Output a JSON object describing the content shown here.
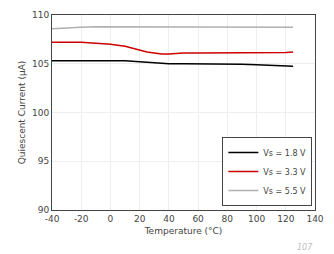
{
  "chart_data": {
    "type": "line",
    "xlabel": "Temperature (°C)",
    "ylabel": "Quiescent Current (μA)",
    "xlim": [
      -40,
      140
    ],
    "ylim": [
      90,
      110
    ],
    "xticks": [
      -40,
      -20,
      0,
      20,
      40,
      60,
      80,
      100,
      120,
      140
    ],
    "yticks": [
      90,
      95,
      100,
      105,
      110
    ],
    "grid": true,
    "legend": "lower right",
    "annotations": [
      "107"
    ],
    "series": [
      {
        "name": "Vs = 1.8 V",
        "color": "#000000",
        "x": [
          -40,
          -30,
          -20,
          -10,
          0,
          10,
          20,
          30,
          40,
          50,
          60,
          70,
          80,
          90,
          100,
          110,
          120,
          125
        ],
        "values": [
          105.3,
          105.3,
          105.3,
          105.3,
          105.3,
          105.3,
          105.2,
          105.1,
          105.0,
          105.0,
          105.0,
          105.0,
          105.0,
          104.95,
          104.9,
          104.85,
          104.8,
          104.75
        ]
      },
      {
        "name": "Vs = 3.3 V",
        "color": "#cc0000",
        "x": [
          -40,
          -30,
          -20,
          -10,
          0,
          10,
          15,
          20,
          25,
          30,
          35,
          40,
          50,
          60,
          70,
          80,
          90,
          100,
          110,
          120,
          125
        ],
        "values": [
          107.2,
          107.2,
          107.2,
          107.1,
          107.0,
          106.8,
          106.6,
          106.4,
          106.2,
          106.1,
          106.0,
          106.0,
          106.1,
          106.1,
          106.1,
          106.1,
          106.1,
          106.1,
          106.1,
          106.15,
          106.2
        ]
      },
      {
        "name": "Vs = 5.5 V",
        "color": "#b0b0b0",
        "x": [
          -40,
          -30,
          -20,
          -10,
          0,
          10,
          20,
          30,
          40,
          50,
          60,
          70,
          80,
          90,
          100,
          110,
          120,
          125
        ],
        "values": [
          108.6,
          108.7,
          108.75,
          108.8,
          108.8,
          108.8,
          108.8,
          108.8,
          108.8,
          108.8,
          108.8,
          108.8,
          108.8,
          108.8,
          108.8,
          108.75,
          108.75,
          108.75
        ]
      }
    ]
  }
}
